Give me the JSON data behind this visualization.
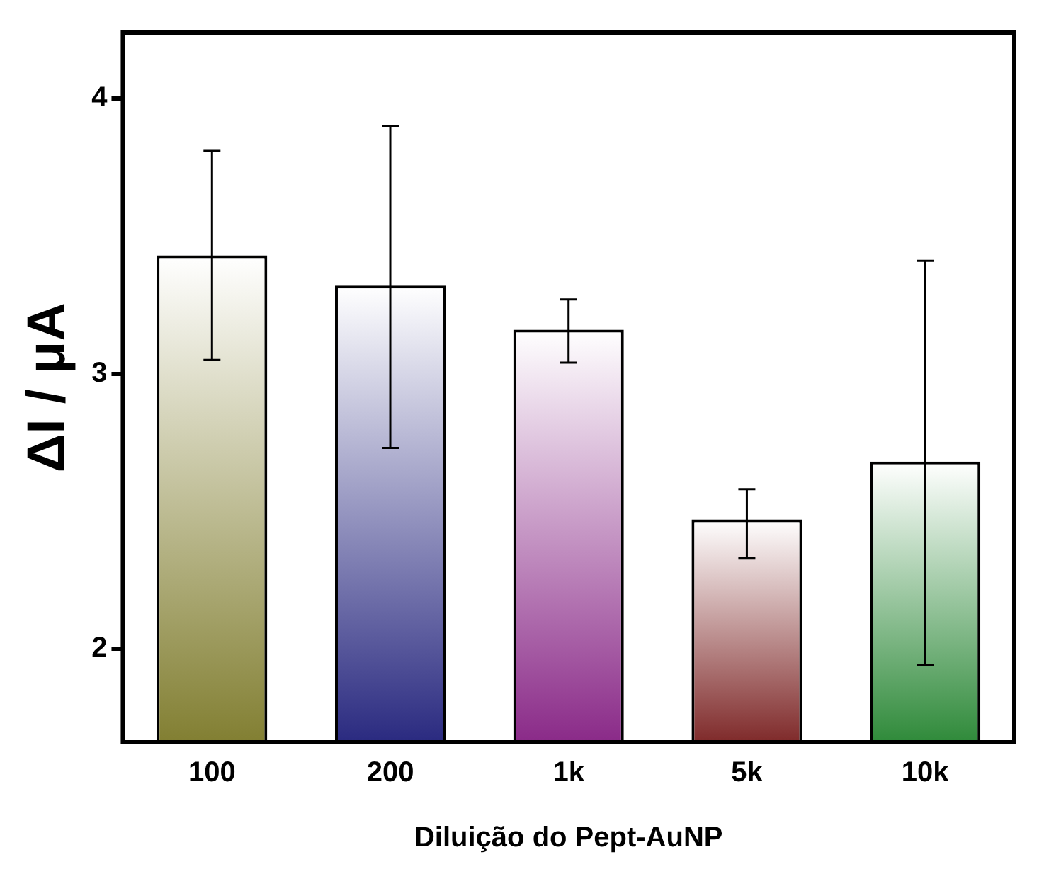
{
  "chart_data": {
    "type": "bar",
    "xlabel": "Diluição do Pept-AuNP",
    "ylabel": "ΔI / μA",
    "categories": [
      "100",
      "200",
      "1k",
      "5k",
      "10k"
    ],
    "values": [
      3.43,
      3.32,
      3.16,
      2.47,
      2.68
    ],
    "colors": [
      "#827f32",
      "#2a2a80",
      "#8a2a88",
      "#7f2a2a",
      "#2f8a3a"
    ],
    "errors": [
      [
        3.05,
        3.81
      ],
      [
        2.73,
        3.9
      ],
      [
        3.04,
        3.27
      ],
      [
        2.33,
        2.58
      ],
      [
        1.94,
        3.41
      ]
    ],
    "ylim": [
      1.66,
      4.24
    ],
    "yticks": [
      2,
      3,
      4
    ],
    "grid": false,
    "legend": false
  }
}
